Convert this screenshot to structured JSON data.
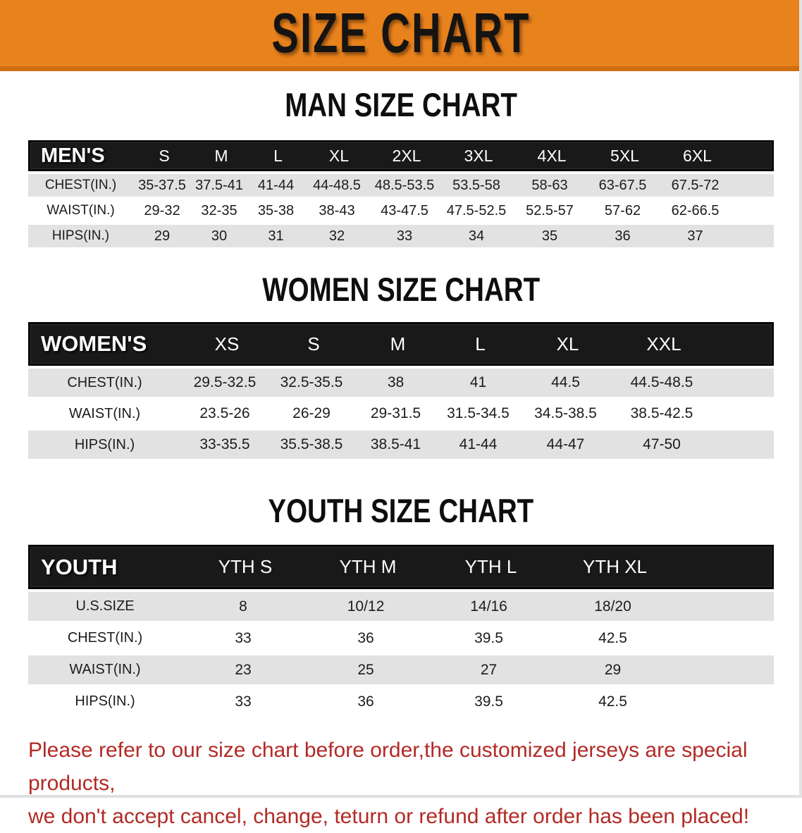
{
  "banner": {
    "title": "SIZE CHART",
    "bg_color": "#e8821c",
    "accent_color": "#cf6e11"
  },
  "sections": {
    "men": {
      "title": "MAN SIZE CHART",
      "group_label": "MEN'S",
      "columns": [
        "S",
        "M",
        "L",
        "XL",
        "2XL",
        "3XL",
        "4XL",
        "5XL",
        "6XL"
      ],
      "rows": [
        {
          "label": "CHEST(IN.)",
          "values": [
            "35-37.5",
            "37.5-41",
            "41-44",
            "44-48.5",
            "48.5-53.5",
            "53.5-58",
            "58-63",
            "63-67.5",
            "67.5-72"
          ]
        },
        {
          "label": "WAIST(IN.)",
          "values": [
            "29-32",
            "32-35",
            "35-38",
            "38-43",
            "43-47.5",
            "47.5-52.5",
            "52.5-57",
            "57-62",
            "62-66.5"
          ]
        },
        {
          "label": "HIPS(IN.)",
          "values": [
            "29",
            "30",
            "31",
            "32",
            "33",
            "34",
            "35",
            "36",
            "37"
          ]
        }
      ]
    },
    "women": {
      "title": "WOMEN SIZE CHART",
      "group_label": "WOMEN'S",
      "columns": [
        "XS",
        "S",
        "M",
        "L",
        "XL",
        "XXL"
      ],
      "rows": [
        {
          "label": "CHEST(IN.)",
          "values": [
            "29.5-32.5",
            "32.5-35.5",
            "38",
            "41",
            "44.5",
            "44.5-48.5"
          ]
        },
        {
          "label": "WAIST(IN.)",
          "values": [
            "23.5-26",
            "26-29",
            "29-31.5",
            "31.5-34.5",
            "34.5-38.5",
            "38.5-42.5"
          ]
        },
        {
          "label": "HIPS(IN.)",
          "values": [
            "33-35.5",
            "35.5-38.5",
            "38.5-41",
            "41-44",
            "44-47",
            "47-50"
          ]
        }
      ]
    },
    "youth": {
      "title": "YOUTH SIZE CHART",
      "group_label": "YOUTH",
      "columns": [
        "YTH S",
        "YTH M",
        "YTH L",
        "YTH XL"
      ],
      "rows": [
        {
          "label": "U.S.SIZE",
          "values": [
            "8",
            "10/12",
            "14/16",
            "18/20"
          ]
        },
        {
          "label": "CHEST(IN.)",
          "values": [
            "33",
            "36",
            "39.5",
            "42.5"
          ]
        },
        {
          "label": "WAIST(IN.)",
          "values": [
            "23",
            "25",
            "27",
            "29"
          ]
        },
        {
          "label": "HIPS(IN.)",
          "values": [
            "33",
            "36",
            "39.5",
            "42.5"
          ]
        }
      ]
    }
  },
  "disclaimer": {
    "line1": "Please refer to our size chart before order,the customized jerseys are special products,",
    "line2": "we don't accept cancel, change, teturn or refund after order has been placed!",
    "color": "#b22a26"
  }
}
